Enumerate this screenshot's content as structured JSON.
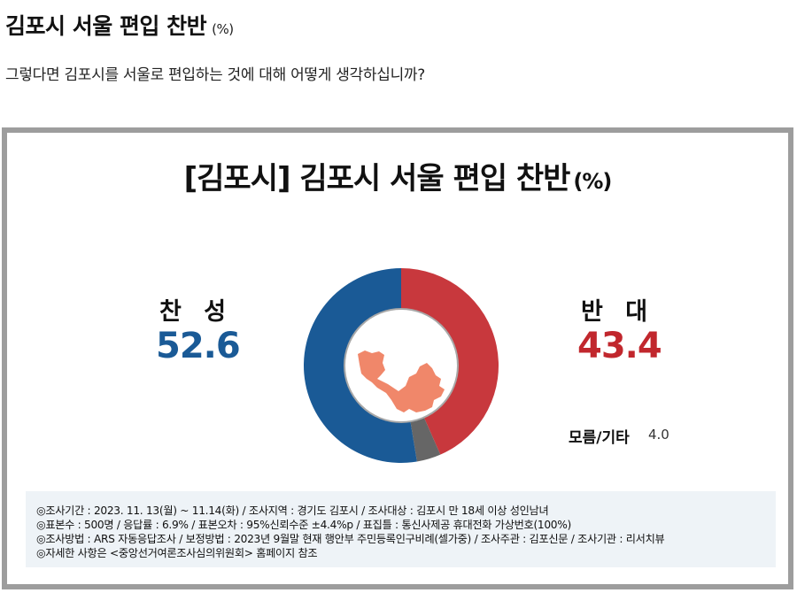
{
  "page": {
    "title": "김포시 서울 편입 찬반",
    "title_unit": "(%)",
    "question": "그렇다면 김포시를 서울로 편입하는 것에 대해 어떻게 생각하십니까?"
  },
  "chart": {
    "title": "[김포시] 김포시 서울 편입 찬반",
    "title_unit": "(%)",
    "yes_label": "찬 성",
    "yes_value": "52.6",
    "no_label": "반 대",
    "no_value": "43.4",
    "etc_label": "모름/기타",
    "etc_value": "4.0",
    "center_icon": "gimpo-seoul-map-icon",
    "colors": {
      "yes": "#1a5a96",
      "no": "#c8383d",
      "etc": "#666666",
      "map": "#f0876a",
      "frame": "#9d9d9d",
      "info_bg": "#eef3f7"
    }
  },
  "info": {
    "lines": [
      "◎조사기간 : 2023. 11. 13(월) ~ 11.14(화) / 조사지역 : 경기도 김포시 / 조사대상 : 김포시 만 18세 이상 성인남녀",
      "◎표본수 : 500명 / 응답률 : 6.9% / 표본오차 : 95%신뢰수준 ±4.4%p  / 표집틀 : 통신사제공 휴대전화 가상번호(100%)",
      "◎조사방법 : ARS 자동응답조사 / 보정방법 : 2023년 9월말 현재 행안부 주민등록인구비례(셀가중) / 조사주관 : 김포신문 / 조사기관 : 리서치뷰",
      "◎자세한 사항은 <중앙선거여론조사심의위원회> 홈페이지 참조"
    ]
  },
  "chart_data": {
    "type": "pie",
    "title": "[김포시] 김포시 서울 편입 찬반 (%)",
    "categories": [
      "찬성",
      "반대",
      "모름/기타"
    ],
    "values": [
      52.6,
      43.4,
      4.0
    ],
    "colors": [
      "#1a5a96",
      "#c8383d",
      "#666666"
    ],
    "donut": true,
    "unit": "%"
  }
}
